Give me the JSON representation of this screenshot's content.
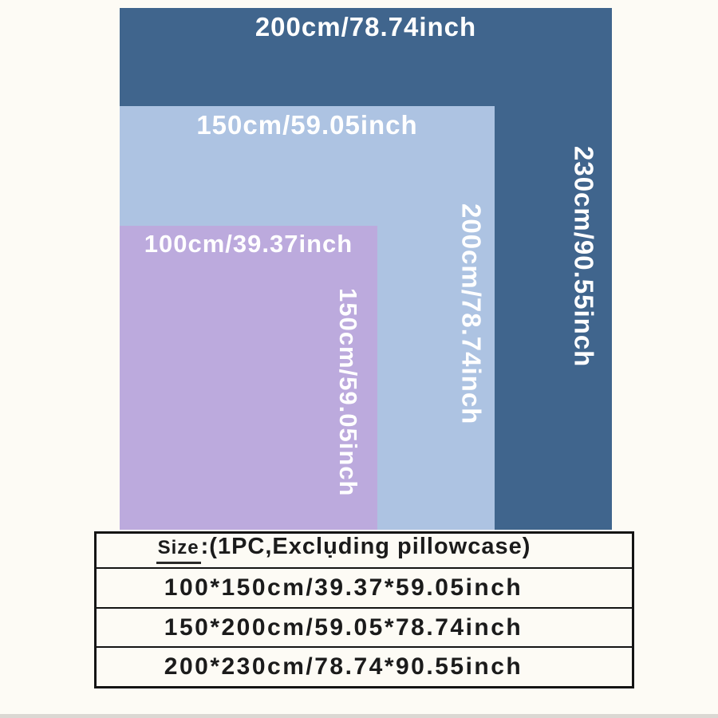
{
  "colors": {
    "background": "#fdfbf5",
    "large_rect": "#40658d",
    "medium_rect": "#adc3e2",
    "small_rect": "#bcaadd",
    "label_text": "#ffffff",
    "table_border": "#141414",
    "table_text": "#1b1b1b"
  },
  "diagram": {
    "sizes": [
      {
        "name": "200x230cm",
        "width_label": "200cm/78.74inch",
        "height_label": "230cm/90.55inch"
      },
      {
        "name": "150x200cm",
        "width_label": "150cm/59.05inch",
        "height_label": "200cm/78.74inch"
      },
      {
        "name": "100x150cm",
        "width_label": "100cm/39.37inch",
        "height_label": "150cm/59.05inch"
      }
    ]
  },
  "table": {
    "header": {
      "size_label": "Size",
      "note": ":(1PC,Exclụding pillowcase)"
    },
    "rows": [
      "100*150cm/39.37*59.05inch",
      "150*200cm/59.05*78.74inch",
      "200*230cm/78.74*90.55inch"
    ]
  }
}
